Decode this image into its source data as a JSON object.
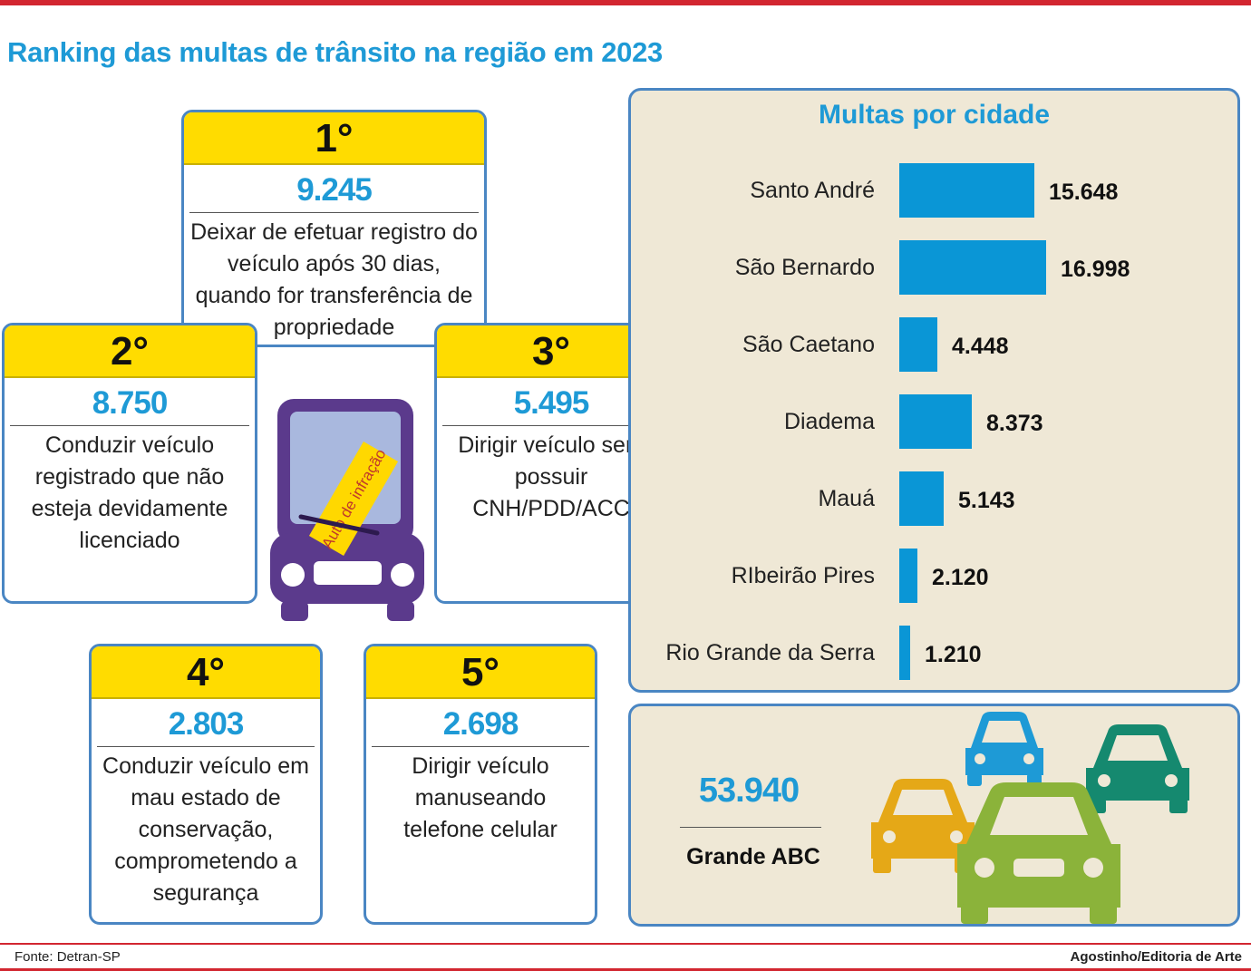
{
  "title": "Ranking das multas de trânsito na região em 2023",
  "ranking": [
    {
      "rank": "1°",
      "value": "9.245",
      "description": "Deixar de efetuar registro do veículo após 30 dias, quando for transferência de propriedade"
    },
    {
      "rank": "2°",
      "value": "8.750",
      "description": "Conduzir veículo registrado que não esteja devidamente licenciado"
    },
    {
      "rank": "3°",
      "value": "5.495",
      "description": "Dirigir veículo sem possuir CNH/PDD/ACC"
    },
    {
      "rank": "4°",
      "value": "2.803",
      "description": "Conduzir veículo em mau estado de conservação, comprometendo a segurança"
    },
    {
      "rank": "5°",
      "value": "2.698",
      "description": "Dirigir veículo manuseando telefone celular"
    }
  ],
  "ticket_text": "Auto de infração",
  "chart_data": {
    "type": "bar",
    "orientation": "horizontal",
    "title": "Multas por cidade",
    "categories": [
      "Santo André",
      "São Bernardo",
      "São Caetano",
      "Diadema",
      "Mauá",
      "RIbeirão Pires",
      "Rio Grande da Serra"
    ],
    "values": [
      15648,
      16998,
      4448,
      8373,
      5143,
      2120,
      1210
    ],
    "value_labels": [
      "15.648",
      "16.998",
      "4.448",
      "8.373",
      "5.143",
      "2.120",
      "1.210"
    ],
    "xlim": [
      0,
      16998
    ],
    "grid": false
  },
  "total": {
    "value": "53.940",
    "label": "Grande ABC"
  },
  "footer": {
    "source": "Fonte: Detran-SP",
    "credit": "Agostinho/Editoria de Arte"
  },
  "colors": {
    "accent": "#1e9ad6",
    "bar": "#0a96d6",
    "header_yellow": "#ffdc00",
    "border_blue": "#4a86c3",
    "panel_bg": "#efe8d6",
    "rule_red": "#d22630"
  }
}
